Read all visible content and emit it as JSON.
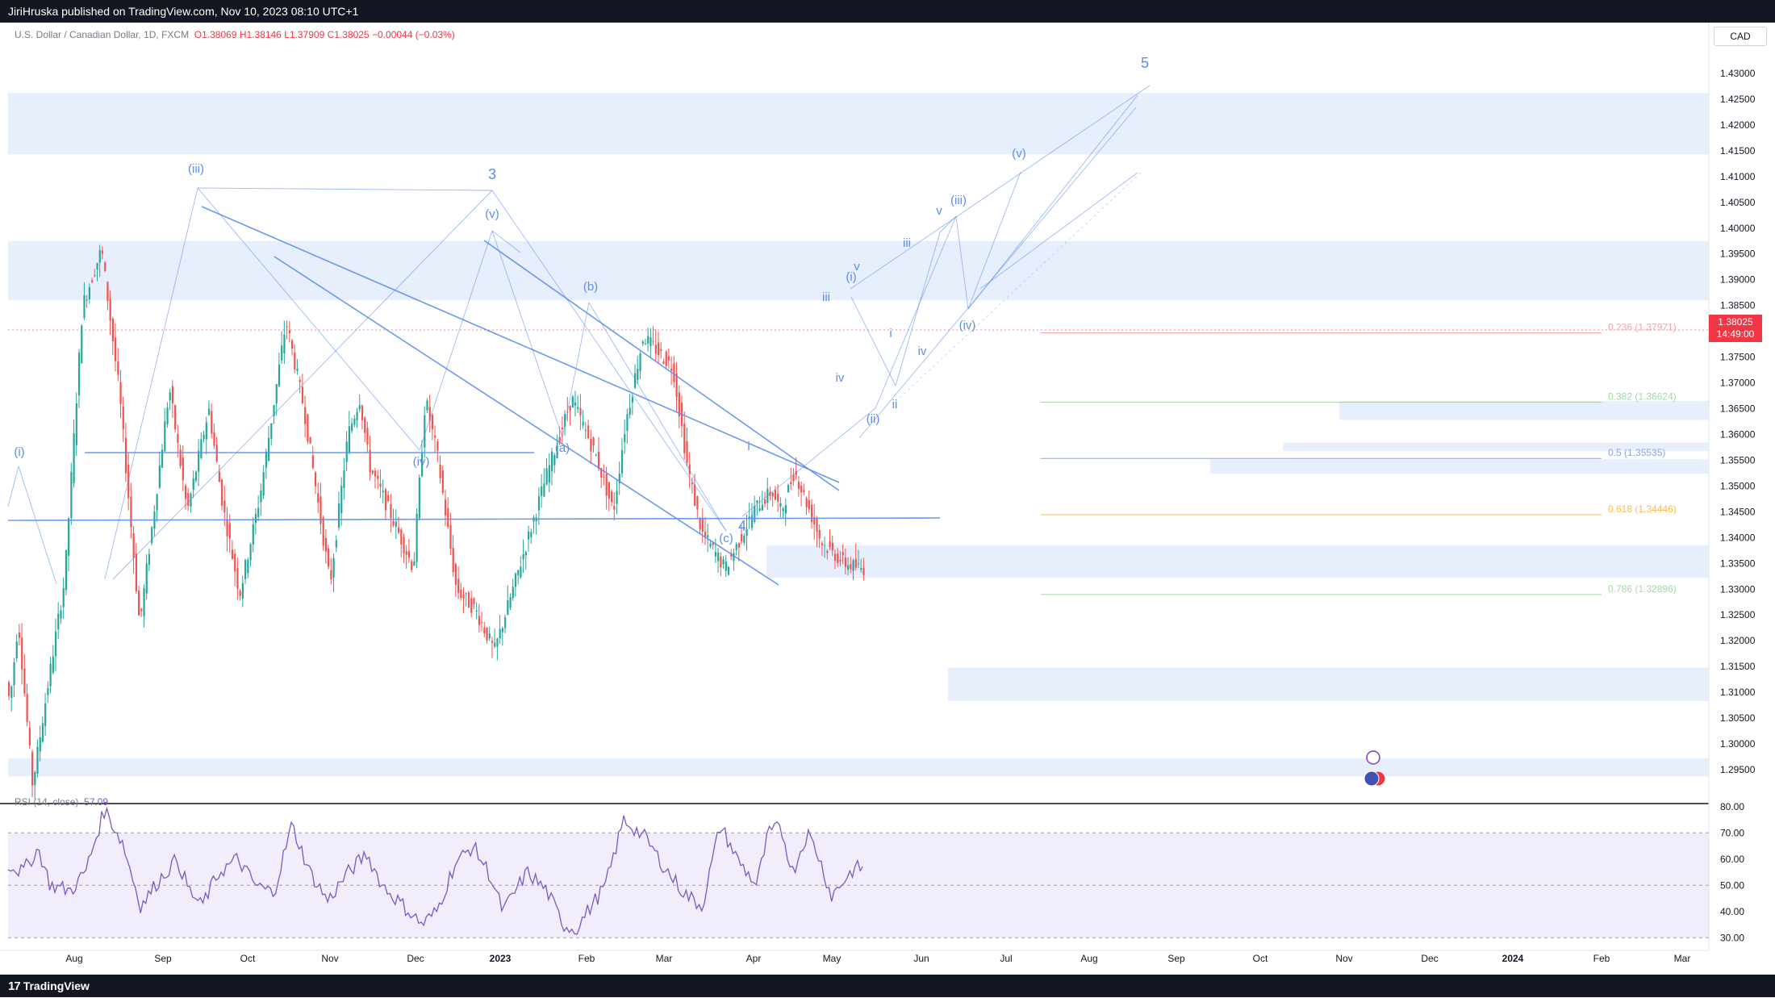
{
  "header": {
    "publisher": "JiriHruska published on TradingView.com, Nov 10, 2023 08:10 UTC+1"
  },
  "legend": {
    "symbol": "U.S. Dollar / Canadian Dollar, 1D, FXCM",
    "open": "O1.38069",
    "high": "H1.38146",
    "low": "L1.37909",
    "close": "C1.38025",
    "change": "−0.00044 (−0.03%)"
  },
  "currency_button": "CAD",
  "price_tag": {
    "price": "1.38025",
    "countdown": "14:49:00"
  },
  "rsi_legend": {
    "label": "RSI (14, close)",
    "value": "57.09"
  },
  "footer": {
    "brand": "TradingView",
    "logo": "tv-logo-icon"
  },
  "colors": {
    "up": "#26a69a",
    "down": "#ef5350",
    "wave": "#5b8def",
    "zone": "#e8effc",
    "rsi": "#7e57c2",
    "rsi_band": "#f1edfa",
    "last_price": "#f23645"
  },
  "chart_data": {
    "type": "candlestick",
    "price_axis": {
      "range": [
        1.29,
        1.435
      ],
      "ticks": [
        "1.43000",
        "1.42500",
        "1.42000",
        "1.41500",
        "1.41000",
        "1.40500",
        "1.40000",
        "1.39500",
        "1.39000",
        "1.38500",
        "1.37500",
        "1.37000",
        "1.36500",
        "1.36000",
        "1.35500",
        "1.35000",
        "1.34500",
        "1.34000",
        "1.33500",
        "1.33000",
        "1.32500",
        "1.32000",
        "1.31500",
        "1.31000",
        "1.30500",
        "1.30000",
        "1.29500"
      ]
    },
    "time_axis": {
      "labels": [
        "Aug",
        "Sep",
        "Oct",
        "Nov",
        "Dec",
        "2023",
        "Feb",
        "Mar",
        "Apr",
        "May",
        "Jun",
        "Jul",
        "Aug",
        "Sep",
        "Oct",
        "Nov",
        "Dec",
        "2024",
        "Feb",
        "Mar"
      ],
      "bold": [
        "2023",
        "2024"
      ]
    },
    "last_price": 1.38025,
    "path": [
      [
        0,
        1.312
      ],
      [
        3,
        1.308
      ],
      [
        10,
        1.324
      ],
      [
        22,
        1.292
      ],
      [
        34,
        1.31
      ],
      [
        49,
        1.332
      ],
      [
        64,
        1.385
      ],
      [
        80,
        1.396
      ],
      [
        95,
        1.368
      ],
      [
        112,
        1.323
      ],
      [
        137,
        1.369
      ],
      [
        152,
        1.345
      ],
      [
        170,
        1.365
      ],
      [
        182,
        1.346
      ],
      [
        196,
        1.329
      ],
      [
        213,
        1.348
      ],
      [
        235,
        1.382
      ],
      [
        250,
        1.365
      ],
      [
        272,
        1.331
      ],
      [
        287,
        1.36
      ],
      [
        297,
        1.367
      ],
      [
        305,
        1.354
      ],
      [
        322,
        1.345
      ],
      [
        342,
        1.334
      ],
      [
        352,
        1.367
      ],
      [
        362,
        1.356
      ],
      [
        378,
        1.33
      ],
      [
        394,
        1.326
      ],
      [
        410,
        1.318
      ],
      [
        432,
        1.335
      ],
      [
        455,
        1.353
      ],
      [
        475,
        1.367
      ],
      [
        495,
        1.356
      ],
      [
        510,
        1.345
      ],
      [
        520,
        1.362
      ],
      [
        535,
        1.379
      ],
      [
        560,
        1.373
      ],
      [
        572,
        1.354
      ],
      [
        584,
        1.341
      ],
      [
        604,
        1.334
      ],
      [
        630,
        1.346
      ],
      [
        643,
        1.349
      ],
      [
        651,
        1.345
      ],
      [
        662,
        1.353
      ],
      [
        685,
        1.339
      ],
      [
        704,
        1.335
      ],
      [
        718,
        1.334
      ]
    ],
    "candle_count": 330,
    "waves": [
      "(i)",
      "(iii)",
      "(iv)",
      "3",
      "(v)",
      "(a)",
      "(b)",
      "(c)",
      "4",
      "i",
      "ii",
      "iii",
      "iv",
      "v",
      "(i)",
      "(ii)",
      "i",
      "ii",
      "iii",
      "iv",
      "v",
      "(iii)",
      "(iv)",
      "(v)",
      "5"
    ],
    "fibonacci": [
      {
        "label": "0.236 (1.37971)",
        "price": 1.37971,
        "color": "#f7a1a1"
      },
      {
        "label": "0.382 (1.36624)",
        "price": 1.36624,
        "color": "#a5d6a7"
      },
      {
        "label": "0.5 (1.35535)",
        "price": 1.35535,
        "color": "#90a4d6"
      },
      {
        "label": "0.618 (1.34446)",
        "price": 1.34446,
        "color": "#ffb74d"
      },
      {
        "label": "0.786 (1.32896)",
        "price": 1.32896,
        "color": "#a5d6a7"
      }
    ],
    "zones": [
      [
        1.4143,
        1.4262
      ],
      [
        1.386,
        1.3975
      ],
      [
        1.3322,
        1.3385
      ],
      [
        1.3083,
        1.3148
      ],
      [
        1.2937,
        1.2972
      ],
      [
        1.3628,
        1.3665
      ],
      [
        1.3568,
        1.3584
      ],
      [
        1.3524,
        1.3552
      ]
    ],
    "rsi": {
      "range": [
        27,
        83
      ],
      "ticks": [
        "80.00",
        "70.00",
        "60.00",
        "50.00",
        "40.00",
        "30.00"
      ],
      "band": [
        30,
        70
      ],
      "last": 57.09,
      "path": [
        [
          0,
          58
        ],
        [
          12,
          55
        ],
        [
          25,
          64
        ],
        [
          35,
          50
        ],
        [
          52,
          48
        ],
        [
          64,
          55
        ],
        [
          80,
          79
        ],
        [
          95,
          66
        ],
        [
          110,
          42
        ],
        [
          125,
          52
        ],
        [
          140,
          60
        ],
        [
          150,
          48
        ],
        [
          160,
          42
        ],
        [
          175,
          55
        ],
        [
          190,
          60
        ],
        [
          205,
          50
        ],
        [
          220,
          47
        ],
        [
          235,
          73
        ],
        [
          250,
          55
        ],
        [
          265,
          44
        ],
        [
          280,
          54
        ],
        [
          297,
          62
        ],
        [
          310,
          50
        ],
        [
          330,
          41
        ],
        [
          343,
          35
        ],
        [
          355,
          40
        ],
        [
          370,
          58
        ],
        [
          385,
          65
        ],
        [
          398,
          55
        ],
        [
          410,
          40
        ],
        [
          430,
          55
        ],
        [
          446,
          48
        ],
        [
          460,
          35
        ],
        [
          470,
          33
        ],
        [
          480,
          40
        ],
        [
          495,
          50
        ],
        [
          510,
          75
        ],
        [
          528,
          68
        ],
        [
          545,
          56
        ],
        [
          560,
          47
        ],
        [
          575,
          42
        ],
        [
          590,
          73
        ],
        [
          604,
          60
        ],
        [
          620,
          50
        ],
        [
          630,
          70
        ],
        [
          640,
          72
        ],
        [
          650,
          55
        ],
        [
          662,
          70
        ],
        [
          670,
          63
        ],
        [
          682,
          46
        ],
        [
          700,
          56
        ],
        [
          708,
          57
        ]
      ]
    }
  }
}
